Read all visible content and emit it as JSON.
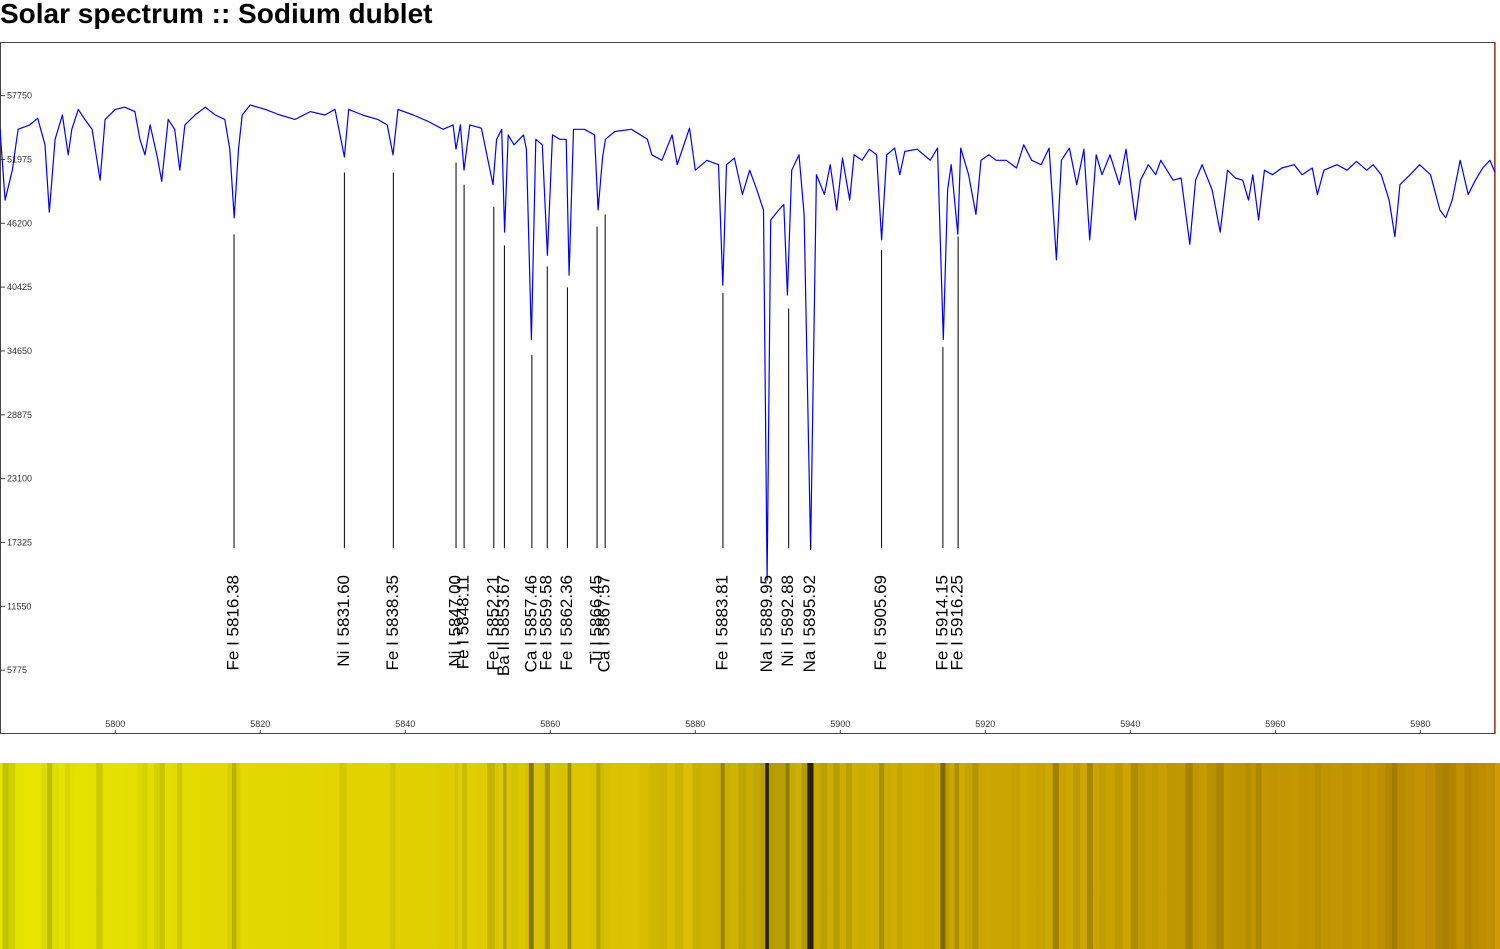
{
  "chart_data": {
    "type": "line",
    "title": "Solar spectrum :: Sodium dublet",
    "x": [
      5784.1,
      5784.8,
      5785.8,
      5786.6,
      5788.2,
      5789.3,
      5790.3,
      5790.9,
      5791.7,
      5792.7,
      5793.5,
      5794.0,
      5794.9,
      5795.8,
      5796.8,
      5797.9,
      5798.6,
      5800.0,
      5801.3,
      5802.7,
      5803.4,
      5804.1,
      5804.8,
      5805.8,
      5806.4,
      5807.3,
      5808.2,
      5808.9,
      5809.6,
      5811.0,
      5812.4,
      5813.8,
      5815.1,
      5815.8,
      5816.4,
      5817.0,
      5817.5,
      5818.6,
      5820.7,
      5822.7,
      5824.8,
      5826.9,
      5828.9,
      5830.3,
      5831.6,
      5832.2,
      5834.1,
      5836.2,
      5837.5,
      5838.3,
      5839.0,
      5841.1,
      5843.2,
      5845.2,
      5846.6,
      5847.0,
      5847.6,
      5848.1,
      5848.9,
      5850.5,
      5852.1,
      5852.6,
      5853.3,
      5853.7,
      5854.2,
      5855.0,
      5856.3,
      5856.7,
      5857.4,
      5858.0,
      5858.9,
      5859.6,
      5860.3,
      5861.3,
      5862.2,
      5862.6,
      5863.2,
      5864.7,
      5866.1,
      5866.6,
      5867.2,
      5867.6,
      5868.9,
      5871.2,
      5873.4,
      5874.0,
      5875.4,
      5876.8,
      5877.5,
      5879.2,
      5880.0,
      5881.6,
      5883.2,
      5883.8,
      5884.3,
      5885.4,
      5886.5,
      5887.5,
      5888.5,
      5889.4,
      5889.9,
      5890.4,
      5891.5,
      5892.2,
      5892.7,
      5893.3,
      5894.3,
      5895.0,
      5895.9,
      5896.7,
      5897.8,
      5898.6,
      5899.5,
      5900.3,
      5901.3,
      5901.9,
      5903.0,
      5904.0,
      5905.0,
      5905.7,
      5906.4,
      5907.5,
      5908.2,
      5908.9,
      5910.6,
      5912.4,
      5913.4,
      5914.2,
      5914.8,
      5915.3,
      5916.2,
      5916.6,
      5917.7,
      5918.7,
      5919.4,
      5920.5,
      5921.5,
      5922.9,
      5924.3,
      5925.3,
      5926.4,
      5927.7,
      5928.8,
      5929.8,
      5930.5,
      5931.6,
      5932.6,
      5933.6,
      5934.4,
      5935.3,
      5936.1,
      5937.2,
      5938.5,
      5939.4,
      5940.7,
      5941.4,
      5942.5,
      5943.5,
      5944.2,
      5945.9,
      5947.0,
      5948.2,
      5949.0,
      5949.9,
      5951.3,
      5952.4,
      5953.4,
      5954.5,
      5955.5,
      5956.3,
      5956.9,
      5957.7,
      5958.5,
      5959.6,
      5960.9,
      5962.6,
      5963.7,
      5965.1,
      5965.8,
      5966.7,
      5968.5,
      5969.9,
      5971.2,
      5972.6,
      5973.5,
      5974.6,
      5975.7,
      5976.5,
      5977.2,
      5978.6,
      5979.9,
      5981.4,
      5982.7,
      5983.5,
      5984.4,
      5985.5,
      5986.6,
      5987.6,
      5988.6,
      5989.6,
      5990.3
    ],
    "values": [
      54700,
      48300,
      51000,
      54700,
      55100,
      55700,
      53300,
      47200,
      53800,
      56000,
      52400,
      54700,
      56500,
      55600,
      54700,
      50100,
      55600,
      56500,
      56700,
      56300,
      53800,
      52400,
      55100,
      52200,
      50000,
      55600,
      54700,
      51000,
      55100,
      56000,
      56700,
      56000,
      55600,
      52900,
      46700,
      52900,
      56000,
      56900,
      56500,
      56000,
      55600,
      56300,
      56000,
      56500,
      52200,
      56500,
      56000,
      55600,
      55100,
      52400,
      56500,
      56000,
      55400,
      54700,
      55100,
      52900,
      55100,
      51000,
      55100,
      54800,
      49700,
      53800,
      54700,
      45400,
      54200,
      53300,
      54200,
      52900,
      35700,
      53800,
      53300,
      43300,
      54200,
      53800,
      53800,
      41500,
      54700,
      54700,
      54200,
      47400,
      52100,
      53800,
      54500,
      54700,
      53800,
      52400,
      51900,
      54200,
      51500,
      54800,
      51000,
      51900,
      51500,
      40600,
      51500,
      52100,
      48800,
      51000,
      49200,
      47400,
      13900,
      46500,
      47400,
      47900,
      39700,
      51000,
      52400,
      47000,
      16700,
      50600,
      48800,
      51500,
      47400,
      52100,
      48300,
      52400,
      51900,
      52900,
      52400,
      44700,
      52400,
      53000,
      50600,
      52700,
      52900,
      51900,
      53000,
      35700,
      49200,
      51500,
      45200,
      53000,
      50600,
      47000,
      51900,
      52400,
      51900,
      51900,
      51200,
      53300,
      51900,
      51500,
      53000,
      42900,
      51900,
      53000,
      49700,
      52900,
      44700,
      52400,
      50600,
      52400,
      49700,
      52900,
      46500,
      50100,
      51500,
      50600,
      51900,
      50100,
      50300,
      44300,
      50100,
      51500,
      49200,
      45400,
      51000,
      50300,
      50100,
      48300,
      50600,
      46500,
      51000,
      50600,
      51200,
      51500,
      50600,
      51200,
      48800,
      51000,
      51500,
      51000,
      51800,
      51000,
      51500,
      50600,
      48300,
      45000,
      49700,
      50600,
      51500,
      50600,
      47400,
      46700,
      48300,
      51900,
      48800,
      50100,
      51200,
      51900,
      50800
    ],
    "color": "#0000ff",
    "xlim": [
      5784.1,
      5990.3
    ],
    "ylim": [
      0,
      62600
    ],
    "xticks": [
      5800,
      5820,
      5840,
      5860,
      5880,
      5900,
      5920,
      5940,
      5960,
      5980
    ],
    "yticks": [
      5775,
      11550,
      17325,
      23100,
      28875,
      34650,
      40425,
      46200,
      51975,
      57750
    ],
    "annotations": [
      {
        "label": "Fe I 5816.38",
        "x": 5816.38,
        "y": 45200
      },
      {
        "label": "Ni I 5831.60",
        "x": 5831.6,
        "y": 50800
      },
      {
        "label": "Fe I 5838.35",
        "x": 5838.35,
        "y": 50800
      },
      {
        "label": "Ni I 5847.00",
        "x": 5847.0,
        "y": 51700
      },
      {
        "label": "Fe I 5848.11",
        "x": 5848.11,
        "y": 49700
      },
      {
        "label": "Fe I 5852.21",
        "x": 5852.21,
        "y": 47700
      },
      {
        "label": "Ba II 5853.67",
        "x": 5853.67,
        "y": 44200
      },
      {
        "label": "Ca I 5857.46",
        "x": 5857.46,
        "y": 34300
      },
      {
        "label": "Fe I 5859.58",
        "x": 5859.58,
        "y": 42300
      },
      {
        "label": "Fe I 5862.36",
        "x": 5862.36,
        "y": 40400
      },
      {
        "label": "Ti I 5866.45",
        "x": 5866.45,
        "y": 45900
      },
      {
        "label": "Ca I 5867.57",
        "x": 5867.57,
        "y": 47000
      },
      {
        "label": "Fe I 5883.81",
        "x": 5883.81,
        "y": 39900
      },
      {
        "label": "Na I 5889.95",
        "x": 5889.95,
        "y": 17600
      },
      {
        "label": "Ni I 5892.88",
        "x": 5892.88,
        "y": 38500
      },
      {
        "label": "Na I 5895.92",
        "x": 5895.92,
        "y": 17600
      },
      {
        "label": "Fe I 5905.69",
        "x": 5905.69,
        "y": 43800
      },
      {
        "label": "Fe I 5914.15",
        "x": 5914.15,
        "y": 35000
      },
      {
        "label": "Fe I 5916.25",
        "x": 5916.25,
        "y": 45000
      }
    ]
  }
}
